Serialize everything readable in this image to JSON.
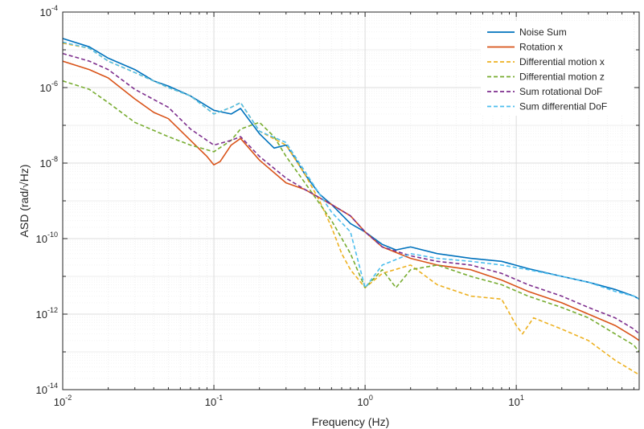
{
  "chart_data": {
    "type": "line",
    "xlabel": "Frequency (Hz)",
    "ylabel": "ASD (rad/√Hz)",
    "xscale": "log",
    "yscale": "log",
    "xlim": [
      0.01,
      65
    ],
    "ylim": [
      1e-14,
      0.0001
    ],
    "grid": true,
    "legend_position": "top-right",
    "x_ticks": [
      {
        "value": 0.01,
        "base": "10",
        "exp": "-2"
      },
      {
        "value": 0.1,
        "base": "10",
        "exp": "-1"
      },
      {
        "value": 1,
        "base": "10",
        "exp": "0"
      },
      {
        "value": 10,
        "base": "10",
        "exp": "1"
      }
    ],
    "y_ticks": [
      {
        "value": 1e-14,
        "base": "10",
        "exp": "-14"
      },
      {
        "value": 1e-12,
        "base": "10",
        "exp": "-12"
      },
      {
        "value": 1e-10,
        "base": "10",
        "exp": "-10"
      },
      {
        "value": 1e-08,
        "base": "10",
        "exp": "-8"
      },
      {
        "value": 1e-06,
        "base": "10",
        "exp": "-6"
      },
      {
        "value": 0.0001,
        "base": "10",
        "exp": "-4"
      }
    ],
    "series": [
      {
        "name": "Noise Sum",
        "color": "#0072BD",
        "dash": false,
        "points": [
          [
            0.01,
            2e-05
          ],
          [
            0.015,
            1.2e-05
          ],
          [
            0.02,
            6e-06
          ],
          [
            0.03,
            3e-06
          ],
          [
            0.04,
            1.5e-06
          ],
          [
            0.05,
            1.1e-06
          ],
          [
            0.07,
            6e-07
          ],
          [
            0.1,
            2.5e-07
          ],
          [
            0.13,
            2e-07
          ],
          [
            0.15,
            2.8e-07
          ],
          [
            0.2,
            6e-08
          ],
          [
            0.25,
            2.5e-08
          ],
          [
            0.3,
            3e-08
          ],
          [
            0.35,
            1.2e-08
          ],
          [
            0.4,
            5e-09
          ],
          [
            0.5,
            1.5e-09
          ],
          [
            0.6,
            8e-10
          ],
          [
            0.8,
            2.5e-10
          ],
          [
            1.0,
            1.5e-10
          ],
          [
            1.3,
            7e-11
          ],
          [
            1.6,
            5e-11
          ],
          [
            2.0,
            6e-11
          ],
          [
            3,
            4e-11
          ],
          [
            5,
            3e-11
          ],
          [
            8,
            2.5e-11
          ],
          [
            12,
            1.6e-11
          ],
          [
            20,
            1e-11
          ],
          [
            30,
            7e-12
          ],
          [
            45,
            4.5e-12
          ],
          [
            60,
            3e-12
          ],
          [
            65,
            2.5e-12
          ]
        ]
      },
      {
        "name": "Rotation x",
        "color": "#D95319",
        "dash": false,
        "points": [
          [
            0.01,
            5e-06
          ],
          [
            0.015,
            3e-06
          ],
          [
            0.02,
            1.8e-06
          ],
          [
            0.03,
            5e-07
          ],
          [
            0.04,
            2.2e-07
          ],
          [
            0.05,
            1.5e-07
          ],
          [
            0.07,
            4e-08
          ],
          [
            0.09,
            1.5e-08
          ],
          [
            0.1,
            9e-09
          ],
          [
            0.11,
            1.1e-08
          ],
          [
            0.13,
            3e-08
          ],
          [
            0.15,
            4.5e-08
          ],
          [
            0.2,
            1.2e-08
          ],
          [
            0.3,
            3e-09
          ],
          [
            0.4,
            2e-09
          ],
          [
            0.6,
            8e-10
          ],
          [
            0.8,
            4e-10
          ],
          [
            1.0,
            1.5e-10
          ],
          [
            1.3,
            6e-11
          ],
          [
            2,
            3e-11
          ],
          [
            3,
            2e-11
          ],
          [
            5,
            1.5e-11
          ],
          [
            8,
            8e-12
          ],
          [
            12,
            4e-12
          ],
          [
            20,
            2e-12
          ],
          [
            30,
            1e-12
          ],
          [
            45,
            5e-13
          ],
          [
            60,
            2.5e-13
          ],
          [
            65,
            2e-13
          ]
        ]
      },
      {
        "name": "Differential motion x",
        "color": "#EDB120",
        "dash": true,
        "points": [
          [
            0.01,
            1.5e-05
          ],
          [
            0.015,
            1.1e-05
          ],
          [
            0.02,
            5e-06
          ],
          [
            0.03,
            2.5e-06
          ],
          [
            0.05,
            1e-06
          ],
          [
            0.07,
            6e-07
          ],
          [
            0.1,
            2e-07
          ],
          [
            0.13,
            3e-07
          ],
          [
            0.15,
            4e-07
          ],
          [
            0.2,
            7e-08
          ],
          [
            0.3,
            3e-08
          ],
          [
            0.4,
            5e-09
          ],
          [
            0.5,
            1e-09
          ],
          [
            0.6,
            2e-10
          ],
          [
            0.7,
            4e-11
          ],
          [
            0.8,
            1.5e-11
          ],
          [
            1.0,
            5e-12
          ],
          [
            1.3,
            1.2e-11
          ],
          [
            2,
            2e-11
          ],
          [
            3,
            6e-12
          ],
          [
            5,
            3e-12
          ],
          [
            8,
            2.5e-12
          ],
          [
            10,
            5e-13
          ],
          [
            11,
            3e-13
          ],
          [
            13,
            8e-13
          ],
          [
            20,
            4e-13
          ],
          [
            30,
            2e-13
          ],
          [
            45,
            6e-14
          ],
          [
            60,
            3e-14
          ],
          [
            65,
            2.5e-14
          ]
        ]
      },
      {
        "name": "Differential motion z",
        "color": "#77AC30",
        "dash": true,
        "points": [
          [
            0.01,
            1.5e-06
          ],
          [
            0.015,
            9e-07
          ],
          [
            0.02,
            4e-07
          ],
          [
            0.03,
            1.2e-07
          ],
          [
            0.05,
            5e-08
          ],
          [
            0.07,
            3e-08
          ],
          [
            0.1,
            2e-08
          ],
          [
            0.13,
            4e-08
          ],
          [
            0.15,
            8e-08
          ],
          [
            0.2,
            1.2e-07
          ],
          [
            0.25,
            5e-08
          ],
          [
            0.3,
            1.5e-08
          ],
          [
            0.4,
            3e-09
          ],
          [
            0.6,
            3e-10
          ],
          [
            0.8,
            4e-11
          ],
          [
            1.0,
            5e-12
          ],
          [
            1.3,
            1.5e-11
          ],
          [
            1.6,
            5e-12
          ],
          [
            2,
            1.5e-11
          ],
          [
            3,
            2e-11
          ],
          [
            5,
            1e-11
          ],
          [
            8,
            6e-12
          ],
          [
            12,
            3e-12
          ],
          [
            20,
            1.5e-12
          ],
          [
            30,
            8e-13
          ],
          [
            45,
            3e-13
          ],
          [
            60,
            1.5e-13
          ],
          [
            65,
            1e-13
          ]
        ]
      },
      {
        "name": "Sum rotational DoF",
        "color": "#7E2F8E",
        "dash": true,
        "points": [
          [
            0.01,
            8e-06
          ],
          [
            0.015,
            5e-06
          ],
          [
            0.02,
            3e-06
          ],
          [
            0.03,
            9e-07
          ],
          [
            0.05,
            3e-07
          ],
          [
            0.07,
            8e-08
          ],
          [
            0.1,
            3e-08
          ],
          [
            0.13,
            4e-08
          ],
          [
            0.15,
            5e-08
          ],
          [
            0.2,
            1.5e-08
          ],
          [
            0.3,
            4e-09
          ],
          [
            0.4,
            2e-09
          ],
          [
            0.6,
            8e-10
          ],
          [
            0.8,
            4e-10
          ],
          [
            1.0,
            1.5e-10
          ],
          [
            1.3,
            6e-11
          ],
          [
            2,
            3.5e-11
          ],
          [
            3,
            2.5e-11
          ],
          [
            5,
            2e-11
          ],
          [
            8,
            1.2e-11
          ],
          [
            12,
            6e-12
          ],
          [
            20,
            3e-12
          ],
          [
            30,
            1.5e-12
          ],
          [
            45,
            8e-13
          ],
          [
            60,
            4e-13
          ],
          [
            65,
            3e-13
          ]
        ]
      },
      {
        "name": "Sum differential DoF",
        "color": "#4DBEEE",
        "dash": true,
        "points": [
          [
            0.01,
            1.6e-05
          ],
          [
            0.015,
            1.1e-05
          ],
          [
            0.02,
            5e-06
          ],
          [
            0.03,
            2.5e-06
          ],
          [
            0.05,
            1e-06
          ],
          [
            0.07,
            6e-07
          ],
          [
            0.1,
            2e-07
          ],
          [
            0.13,
            3e-07
          ],
          [
            0.15,
            4e-07
          ],
          [
            0.2,
            7e-08
          ],
          [
            0.3,
            3.5e-08
          ],
          [
            0.4,
            6e-09
          ],
          [
            0.5,
            1.5e-09
          ],
          [
            0.6,
            5e-10
          ],
          [
            0.8,
            1.5e-10
          ],
          [
            1.0,
            5e-12
          ],
          [
            1.3,
            2e-11
          ],
          [
            2,
            4e-11
          ],
          [
            3,
            3e-11
          ],
          [
            5,
            2.5e-11
          ],
          [
            8,
            2e-11
          ],
          [
            12,
            1.5e-11
          ],
          [
            20,
            1e-11
          ],
          [
            30,
            7e-12
          ],
          [
            45,
            4e-12
          ],
          [
            60,
            3e-12
          ],
          [
            65,
            2.5e-12
          ]
        ]
      }
    ]
  }
}
